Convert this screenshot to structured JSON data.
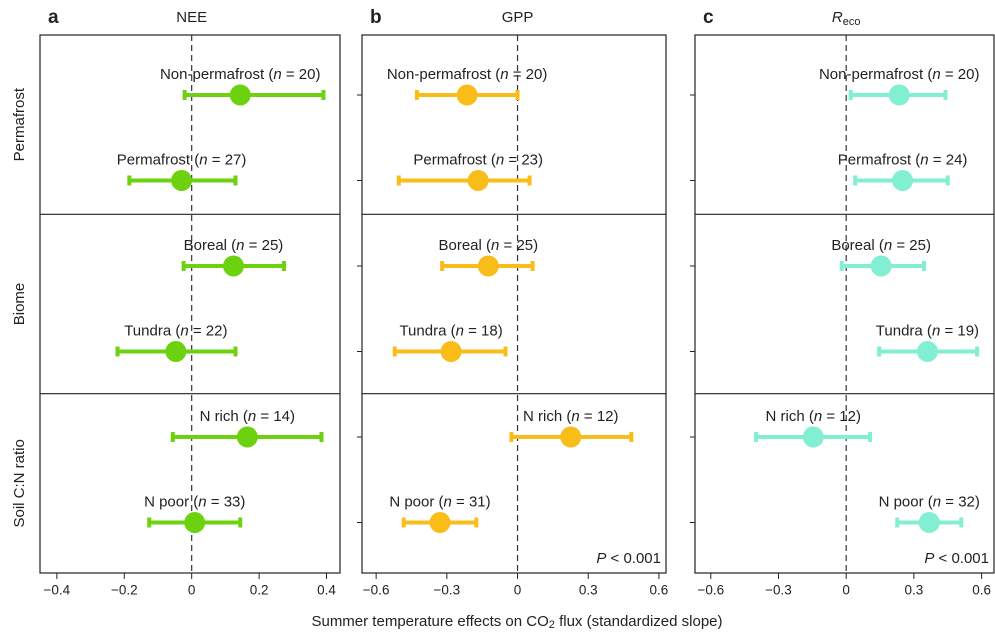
{
  "chart_data": [
    {
      "type": "forest",
      "panel": "a",
      "title": "NEE",
      "color": "#6cd20f",
      "xlim": [
        -0.45,
        0.44
      ],
      "xticks": [
        {
          "value": -0.4,
          "label": "−0.4"
        },
        {
          "value": -0.2,
          "label": "−0.2"
        },
        0,
        0.2,
        0.4
      ],
      "rows": [
        {
          "label": "Non-permafrost (n = 20)",
          "estimate": 0.144,
          "lo": -0.021,
          "hi": 0.391
        },
        {
          "label": "Permafrost (n = 27)",
          "estimate": -0.03,
          "lo": -0.185,
          "hi": 0.13
        },
        {
          "label": "Boreal (n = 25)",
          "estimate": 0.124,
          "lo": -0.024,
          "hi": 0.274
        },
        {
          "label": "Tundra (n = 22)",
          "estimate": -0.047,
          "lo": -0.22,
          "hi": 0.13
        },
        {
          "label": "N rich (n = 14)",
          "estimate": 0.165,
          "lo": -0.056,
          "hi": 0.385
        },
        {
          "label": "N poor (n = 33)",
          "estimate": 0.009,
          "lo": -0.126,
          "hi": 0.144
        }
      ]
    },
    {
      "type": "forest",
      "panel": "b",
      "title": "GPP",
      "color": "#f9bd1a",
      "xlim": [
        -0.66,
        0.63
      ],
      "xticks": [
        {
          "value": -0.6,
          "label": "−0.6"
        },
        {
          "value": -0.3,
          "label": "−0.3"
        },
        0,
        0.3,
        0.6
      ],
      "p_value": "P < 0.001",
      "rows": [
        {
          "label": "Non-permafrost (n = 20)",
          "estimate": -0.214,
          "lo": -0.427,
          "hi": 0.0
        },
        {
          "label": "Permafrost (n = 23)",
          "estimate": -0.167,
          "lo": -0.504,
          "hi": 0.051
        },
        {
          "label": "Boreal (n = 25)",
          "estimate": -0.124,
          "lo": -0.32,
          "hi": 0.064
        },
        {
          "label": "Tundra (n = 18)",
          "estimate": -0.282,
          "lo": -0.521,
          "hi": -0.051
        },
        {
          "label": "N rich (n = 12)",
          "estimate": 0.226,
          "lo": -0.026,
          "hi": 0.483
        },
        {
          "label": "N poor (n = 31)",
          "estimate": -0.329,
          "lo": -0.483,
          "hi": -0.175
        }
      ]
    },
    {
      "type": "forest",
      "panel": "c",
      "title": "R",
      "title_sub": "eco",
      "color": "#82efd2",
      "xlim": [
        -0.67,
        0.655
      ],
      "xticks": [
        {
          "value": -0.6,
          "label": "−0.6"
        },
        {
          "value": -0.3,
          "label": "−0.3"
        },
        0,
        0.3,
        0.6
      ],
      "p_value": "P < 0.001",
      "rows": [
        {
          "label": "Non-permafrost (n = 20)",
          "estimate": 0.235,
          "lo": 0.02,
          "hi": 0.44
        },
        {
          "label": "Permafrost (n = 24)",
          "estimate": 0.25,
          "lo": 0.04,
          "hi": 0.45
        },
        {
          "label": "Boreal (n = 25)",
          "estimate": 0.155,
          "lo": -0.02,
          "hi": 0.345
        },
        {
          "label": "Tundra (n = 19)",
          "estimate": 0.36,
          "lo": 0.146,
          "hi": 0.58
        },
        {
          "label": "N rich (n = 12)",
          "estimate": -0.146,
          "lo": -0.4,
          "hi": 0.106
        },
        {
          "label": "N poor (n = 32)",
          "estimate": 0.368,
          "lo": 0.226,
          "hi": 0.51
        }
      ]
    }
  ],
  "groups": [
    "Permafrost",
    "Biome",
    "Soil C:N ratio"
  ],
  "x_label": "Summer temperature effects on CO2 flux (standardized slope)"
}
